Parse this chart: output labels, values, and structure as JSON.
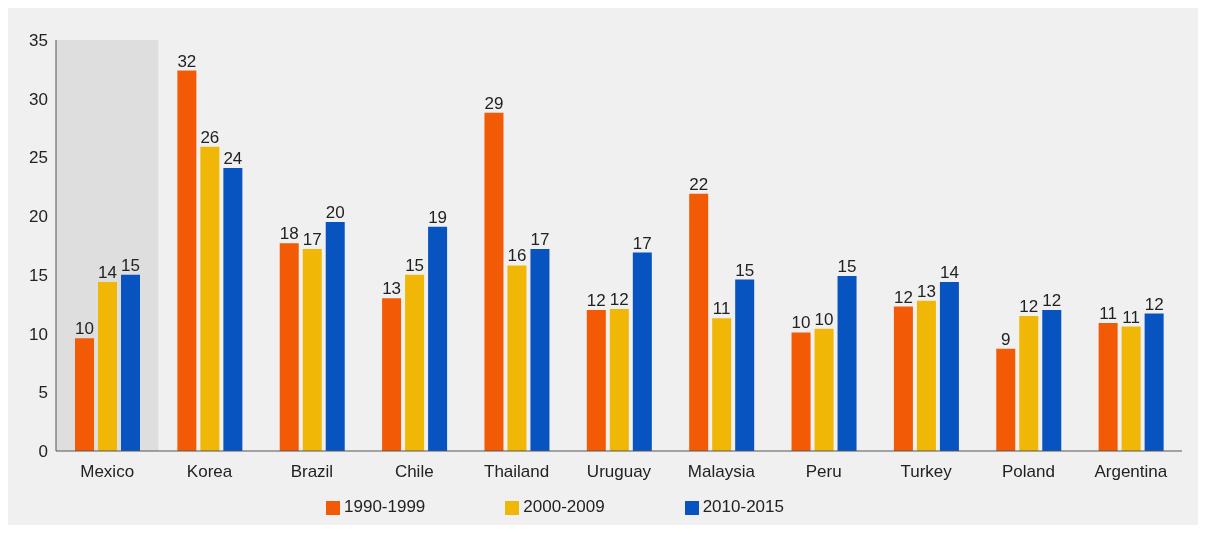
{
  "chart_data": {
    "type": "bar",
    "categories": [
      "Mexico",
      "Korea",
      "Brazil",
      "Chile",
      "Thailand",
      "Uruguay",
      "Malaysia",
      "Peru",
      "Turkey",
      "Poland",
      "Argentina"
    ],
    "series": [
      {
        "name": "1990-1999",
        "color": "#f25a05",
        "values": [
          9.6,
          32.4,
          17.7,
          13.0,
          28.8,
          12.0,
          21.9,
          10.1,
          12.3,
          8.7,
          10.9
        ],
        "value_labels": [
          "10",
          "32",
          "18",
          "13",
          "29",
          "12",
          "22",
          "10",
          "12",
          "9",
          "11"
        ]
      },
      {
        "name": "2000-2009",
        "color": "#f0b706",
        "values": [
          14.4,
          25.9,
          17.2,
          15.0,
          15.8,
          12.1,
          11.3,
          10.4,
          12.8,
          11.5,
          10.6
        ],
        "value_labels": [
          "14",
          "26",
          "17",
          "15",
          "16",
          "12",
          "11",
          "10",
          "13",
          "12",
          "11"
        ]
      },
      {
        "name": "2010-2015",
        "color": "#0753c0",
        "values": [
          15.0,
          24.1,
          19.5,
          19.1,
          17.2,
          16.9,
          14.6,
          14.9,
          14.4,
          12.0,
          11.7
        ],
        "value_labels": [
          "15",
          "24",
          "20",
          "19",
          "17",
          "17",
          "15",
          "15",
          "14",
          "12",
          "12"
        ]
      }
    ],
    "ylim": [
      0,
      35
    ],
    "yticks": [
      0,
      5,
      10,
      15,
      20,
      25,
      30,
      35
    ],
    "grid": false,
    "legend": "bottom",
    "bands": [
      {
        "axis": "x",
        "from": "Mexico",
        "to": "Mexico",
        "color": "#dedede"
      }
    ]
  }
}
